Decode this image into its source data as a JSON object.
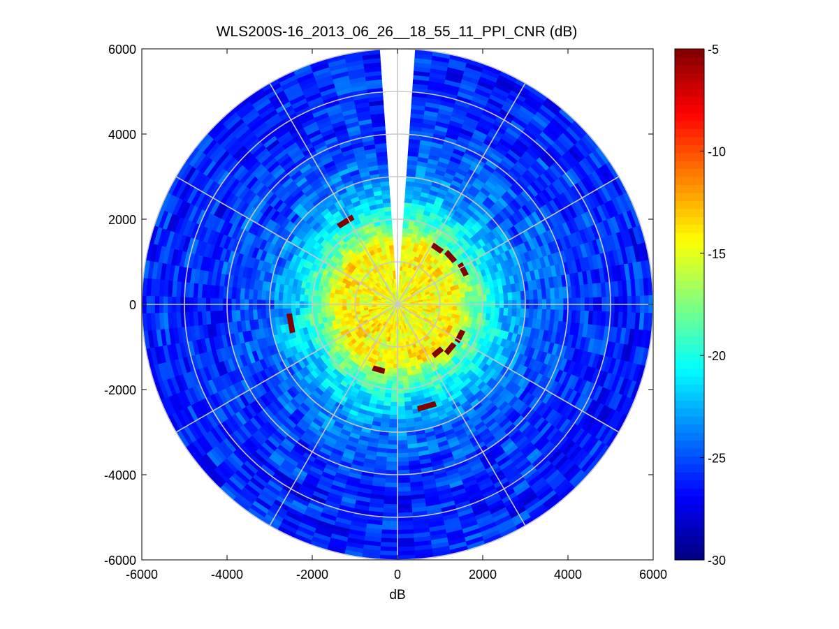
{
  "chart_data": {
    "type": "heatmap",
    "title": "WLS200S-16_2013_06_26__18_55_11_PPI_CNR (dB)",
    "xlabel": "dB",
    "ylabel": "",
    "xlim": [
      -6000,
      6000
    ],
    "ylim": [
      -6000,
      6000
    ],
    "xticks": [
      "-6000",
      "-4000",
      "-2000",
      "0",
      "2000",
      "4000",
      "6000"
    ],
    "yticks": [
      "6000",
      "4000",
      "2000",
      "0",
      "-2000",
      "-4000",
      "-6000"
    ],
    "max_range": 6000,
    "range_rings": [
      1000,
      2000,
      3000,
      4000,
      5000,
      6000
    ],
    "spoke_angles_deg": [
      0,
      30,
      60,
      90,
      120,
      150,
      180,
      210,
      240,
      270,
      300,
      330
    ],
    "blind_sector_deg": [
      -4,
      4
    ],
    "colorbar": {
      "colormap": "jet",
      "range": [
        -30,
        -5
      ],
      "ticks": [
        "-5",
        "-10",
        "-15",
        "-20",
        "-25",
        "-30"
      ]
    },
    "cnr_profile": {
      "range_m": [
        0,
        700,
        1400,
        1800,
        2300,
        3000,
        4000,
        5000,
        6000
      ],
      "cnr_db": [
        -15,
        -14.5,
        -14,
        -18,
        -21,
        -24,
        -25.5,
        -26,
        -26
      ]
    },
    "hot_spots": [
      {
        "range_m": 1620,
        "azimuth_deg": 35,
        "cnr_db": -5
      },
      {
        "range_m": 1680,
        "azimuth_deg": 48,
        "cnr_db": -5
      },
      {
        "range_m": 1750,
        "azimuth_deg": 62,
        "cnr_db": -5
      },
      {
        "range_m": 1650,
        "azimuth_deg": 117,
        "cnr_db": -5
      },
      {
        "range_m": 1620,
        "azimuth_deg": 130,
        "cnr_db": -5
      },
      {
        "range_m": 1470,
        "azimuth_deg": 140,
        "cnr_db": -5
      },
      {
        "range_m": 2500,
        "azimuth_deg": 164,
        "cnr_db": -5
      },
      {
        "range_m": 1600,
        "azimuth_deg": 196,
        "cnr_db": -5
      },
      {
        "range_m": 2550,
        "azimuth_deg": 260,
        "cnr_db": -5
      },
      {
        "range_m": 2300,
        "azimuth_deg": 328,
        "cnr_db": -5
      }
    ]
  }
}
